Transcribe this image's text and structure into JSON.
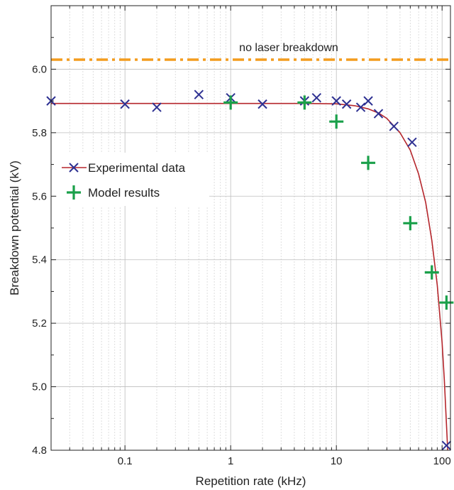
{
  "chart_data": {
    "type": "scatter",
    "xlabel": "Repetition rate (kHz)",
    "ylabel": "Breakdown potential (kV)",
    "xscale": "log",
    "xlim": [
      0.02,
      120
    ],
    "ylim": [
      4.8,
      6.2
    ],
    "x_ticks": [
      0.1,
      1,
      10,
      100
    ],
    "x_tick_labels": [
      "0.1",
      "1",
      "10",
      "100"
    ],
    "y_ticks": [
      4.8,
      5.0,
      5.2,
      5.4,
      5.6,
      5.8,
      6.0
    ],
    "y_tick_labels": [
      "4.8",
      "5.0",
      "5.2",
      "5.4",
      "5.6",
      "5.8",
      "6.0"
    ],
    "grid": true,
    "legend_position": "middle-left",
    "annotation": {
      "text": "no laser breakdown",
      "y": 6.03,
      "color": "#f39c1e",
      "style": "dash-dot"
    },
    "series": [
      {
        "name": "Experimental data",
        "marker": "x",
        "color": "#2e3192",
        "line_color": "#b5262c",
        "x": [
          0.02,
          0.1,
          0.2,
          0.5,
          1,
          2,
          5,
          6.5,
          10,
          12.5,
          17,
          20,
          25,
          35,
          52,
          110
        ],
        "y": [
          5.9,
          5.89,
          5.88,
          5.92,
          5.91,
          5.89,
          5.9,
          5.91,
          5.9,
          5.89,
          5.88,
          5.9,
          5.86,
          5.82,
          5.77,
          4.815
        ]
      },
      {
        "name": "Model results",
        "marker": "plus",
        "color": "#1aa04a",
        "x": [
          1,
          5,
          10,
          20,
          50,
          80,
          110
        ],
        "y": [
          5.895,
          5.895,
          5.835,
          5.705,
          5.515,
          5.36,
          5.265
        ]
      }
    ],
    "fit_curve": {
      "x": [
        0.02,
        0.1,
        1,
        5,
        10,
        15,
        20,
        25,
        30,
        40,
        50,
        60,
        70,
        80,
        90,
        100,
        105,
        110,
        115
      ],
      "y": [
        5.892,
        5.892,
        5.892,
        5.892,
        5.891,
        5.885,
        5.875,
        5.862,
        5.845,
        5.8,
        5.745,
        5.67,
        5.58,
        5.46,
        5.32,
        5.14,
        5.02,
        4.88,
        4.75
      ]
    }
  }
}
